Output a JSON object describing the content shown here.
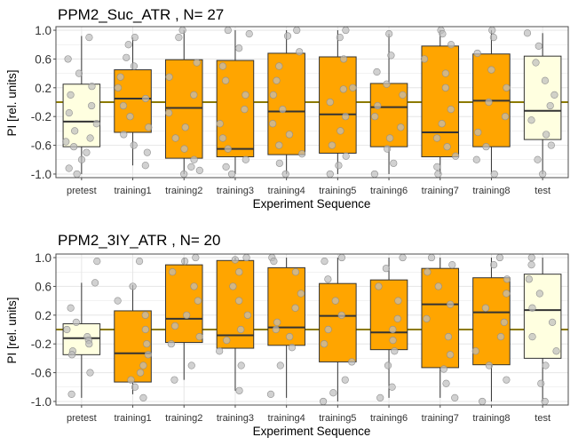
{
  "figure": {
    "colors": {
      "box_fill_control": "#FFFFE0",
      "box_fill_training": "#FFA500",
      "box_stroke": "#333333",
      "reference_line": "#8C7A00",
      "points": "#BEBEBE",
      "grid": "#E6E6E6",
      "panel_border": "#4D4D4D"
    }
  },
  "chart_data": [
    {
      "type": "box",
      "title": "PPM2_Suc_ATR , N= 27",
      "xlabel": "Experiment Sequence",
      "ylabel": "PI [rel. units]",
      "ylim": [
        -1.05,
        1.05
      ],
      "yticks": [
        1.0,
        0.6,
        0.2,
        -0.2,
        -0.6,
        -1.0
      ],
      "ytick_labels": [
        "1.0",
        "0.6",
        "0.2",
        "-0.2",
        "-0.6",
        "-1.0"
      ],
      "reference_y": 0.0,
      "grid": true,
      "categories": [
        "pretest",
        "training1",
        "training2",
        "training3",
        "training4",
        "training5",
        "training6",
        "training7",
        "training8",
        "test"
      ],
      "box_kind": [
        "control",
        "training",
        "training",
        "training",
        "training",
        "training",
        "training",
        "training",
        "training",
        "control"
      ],
      "boxes": [
        {
          "min": -1.0,
          "q1": -0.62,
          "median": -0.27,
          "q3": 0.25,
          "max": 0.92
        },
        {
          "min": -0.88,
          "q1": -0.42,
          "median": 0.05,
          "q3": 0.45,
          "max": 0.9
        },
        {
          "min": -1.0,
          "q1": -0.78,
          "median": -0.08,
          "q3": 0.59,
          "max": 1.0
        },
        {
          "min": -1.0,
          "q1": -0.76,
          "median": -0.65,
          "q3": 0.58,
          "max": 1.0
        },
        {
          "min": -1.0,
          "q1": -0.73,
          "median": -0.13,
          "q3": 0.68,
          "max": 1.0
        },
        {
          "min": -1.0,
          "q1": -0.71,
          "median": -0.17,
          "q3": 0.63,
          "max": 1.0
        },
        {
          "min": -1.0,
          "q1": -0.62,
          "median": -0.07,
          "q3": 0.26,
          "max": 0.95
        },
        {
          "min": -1.0,
          "q1": -0.76,
          "median": -0.42,
          "q3": 0.78,
          "max": 1.0
        },
        {
          "min": -1.0,
          "q1": -0.62,
          "median": 0.02,
          "q3": 0.67,
          "max": 1.0
        },
        {
          "min": -1.0,
          "q1": -0.52,
          "median": -0.12,
          "q3": 0.64,
          "max": 0.96
        }
      ],
      "points": [
        [
          0.9,
          0.6,
          0.4,
          0.22,
          0.1,
          -0.05,
          -0.15,
          -0.3,
          -0.4,
          -0.5,
          -0.55,
          -0.62,
          -0.7,
          -0.8,
          -0.92,
          -1.0
        ],
        [
          0.9,
          0.8,
          0.62,
          0.5,
          0.35,
          0.2,
          0.05,
          -0.05,
          -0.2,
          -0.35,
          -0.45,
          -0.6,
          -0.7,
          -0.88
        ],
        [
          1.0,
          0.9,
          0.55,
          0.35,
          0.1,
          -0.15,
          -0.35,
          -0.5,
          -0.65,
          -0.8,
          -0.9,
          -0.95,
          -1.0
        ],
        [
          1.0,
          0.95,
          0.75,
          0.5,
          0.3,
          0.1,
          -0.1,
          -0.3,
          -0.5,
          -0.65,
          -0.8,
          -0.9,
          -1.0
        ],
        [
          1.0,
          0.92,
          0.7,
          0.5,
          0.3,
          0.1,
          -0.1,
          -0.3,
          -0.45,
          -0.6,
          -0.72,
          -0.85,
          -1.0
        ],
        [
          1.0,
          0.9,
          0.6,
          0.2,
          0.18,
          0.0,
          -0.2,
          -0.4,
          -0.6,
          -0.75,
          -0.88,
          -1.0
        ],
        [
          0.95,
          0.65,
          0.42,
          0.25,
          0.1,
          -0.05,
          -0.2,
          -0.35,
          -0.5,
          -0.65,
          -0.85,
          -1.0
        ],
        [
          1.0,
          0.95,
          0.8,
          0.6,
          0.4,
          0.2,
          -0.1,
          -0.3,
          -0.5,
          -0.62,
          -0.75,
          -0.9,
          -1.0
        ],
        [
          1.0,
          0.9,
          0.68,
          0.45,
          0.2,
          0.0,
          -0.2,
          -0.42,
          -0.62,
          -0.8,
          -1.0
        ],
        [
          0.96,
          0.78,
          0.55,
          0.3,
          0.1,
          -0.05,
          -0.25,
          -0.45,
          -0.6,
          -0.8,
          -1.0
        ]
      ]
    },
    {
      "type": "box",
      "title": "PPM2_3IY_ATR , N= 20",
      "xlabel": "Experiment Sequence",
      "ylabel": "PI [rel. units]",
      "ylim": [
        -1.05,
        1.05
      ],
      "yticks": [
        1.0,
        0.6,
        0.2,
        -0.2,
        -0.6,
        -1.0
      ],
      "ytick_labels": [
        "1.0",
        "0.6",
        "0.2",
        "-0.2",
        "-0.6",
        "-1.0"
      ],
      "reference_y": 0.0,
      "grid": true,
      "categories": [
        "pretest",
        "training1",
        "training2",
        "training3",
        "training4",
        "training5",
        "training6",
        "training7",
        "training8",
        "test"
      ],
      "box_kind": [
        "control",
        "training",
        "training",
        "training",
        "training",
        "training",
        "training",
        "training",
        "training",
        "control"
      ],
      "boxes": [
        {
          "min": -0.95,
          "q1": -0.35,
          "median": -0.12,
          "q3": 0.08,
          "max": 0.65
        },
        {
          "min": -0.9,
          "q1": -0.73,
          "median": -0.33,
          "q3": 0.26,
          "max": 0.62
        },
        {
          "min": -0.7,
          "q1": -0.18,
          "median": 0.15,
          "q3": 0.9,
          "max": 1.0
        },
        {
          "min": -0.85,
          "q1": -0.26,
          "median": -0.08,
          "q3": 0.96,
          "max": 1.0
        },
        {
          "min": -0.95,
          "q1": -0.22,
          "median": 0.03,
          "q3": 0.86,
          "max": 1.0
        },
        {
          "min": -1.0,
          "q1": -0.45,
          "median": 0.19,
          "q3": 0.64,
          "max": 1.0
        },
        {
          "min": -0.95,
          "q1": -0.28,
          "median": -0.04,
          "q3": 0.69,
          "max": 1.0
        },
        {
          "min": -0.95,
          "q1": -0.53,
          "median": 0.35,
          "q3": 0.85,
          "max": 1.0
        },
        {
          "min": -1.0,
          "q1": -0.49,
          "median": 0.24,
          "q3": 0.72,
          "max": 1.0
        },
        {
          "min": -1.0,
          "q1": -0.4,
          "median": 0.27,
          "q3": 0.77,
          "max": 1.0
        }
      ],
      "points": [
        [
          0.95,
          0.65,
          0.3,
          0.1,
          0.0,
          -0.1,
          -0.15,
          -0.2,
          -0.3,
          -0.35,
          -0.6,
          -0.9
        ],
        [
          0.95,
          0.6,
          0.4,
          0.2,
          0.0,
          -0.2,
          -0.35,
          -0.5,
          -0.6,
          -0.7,
          -0.8,
          -0.95
        ],
        [
          1.0,
          0.95,
          0.8,
          0.6,
          0.4,
          0.2,
          0.05,
          -0.1,
          -0.2,
          -0.5,
          -0.7
        ],
        [
          1.0,
          0.97,
          0.8,
          0.6,
          0.4,
          0.2,
          0.0,
          -0.15,
          -0.3,
          -0.5,
          -0.85
        ],
        [
          1.0,
          0.95,
          0.8,
          0.5,
          0.3,
          0.1,
          0.0,
          -0.1,
          -0.25,
          -0.5,
          -0.9
        ],
        [
          1.0,
          0.95,
          0.7,
          0.4,
          0.2,
          0.0,
          -0.2,
          -0.45,
          -0.7,
          -0.88,
          -1.0
        ],
        [
          1.0,
          0.85,
          0.6,
          0.4,
          0.15,
          0.0,
          -0.15,
          -0.3,
          -0.5,
          -0.8,
          -0.95
        ],
        [
          1.0,
          0.9,
          0.8,
          0.6,
          0.35,
          0.15,
          -0.1,
          -0.35,
          -0.55,
          -0.75,
          -0.95
        ],
        [
          1.0,
          0.9,
          0.7,
          0.5,
          0.3,
          0.1,
          -0.1,
          -0.3,
          -0.5,
          -0.7,
          -1.0
        ],
        [
          1.0,
          0.9,
          0.7,
          0.5,
          0.3,
          0.1,
          -0.1,
          -0.3,
          -0.5,
          -0.75,
          -1.0
        ]
      ]
    }
  ]
}
